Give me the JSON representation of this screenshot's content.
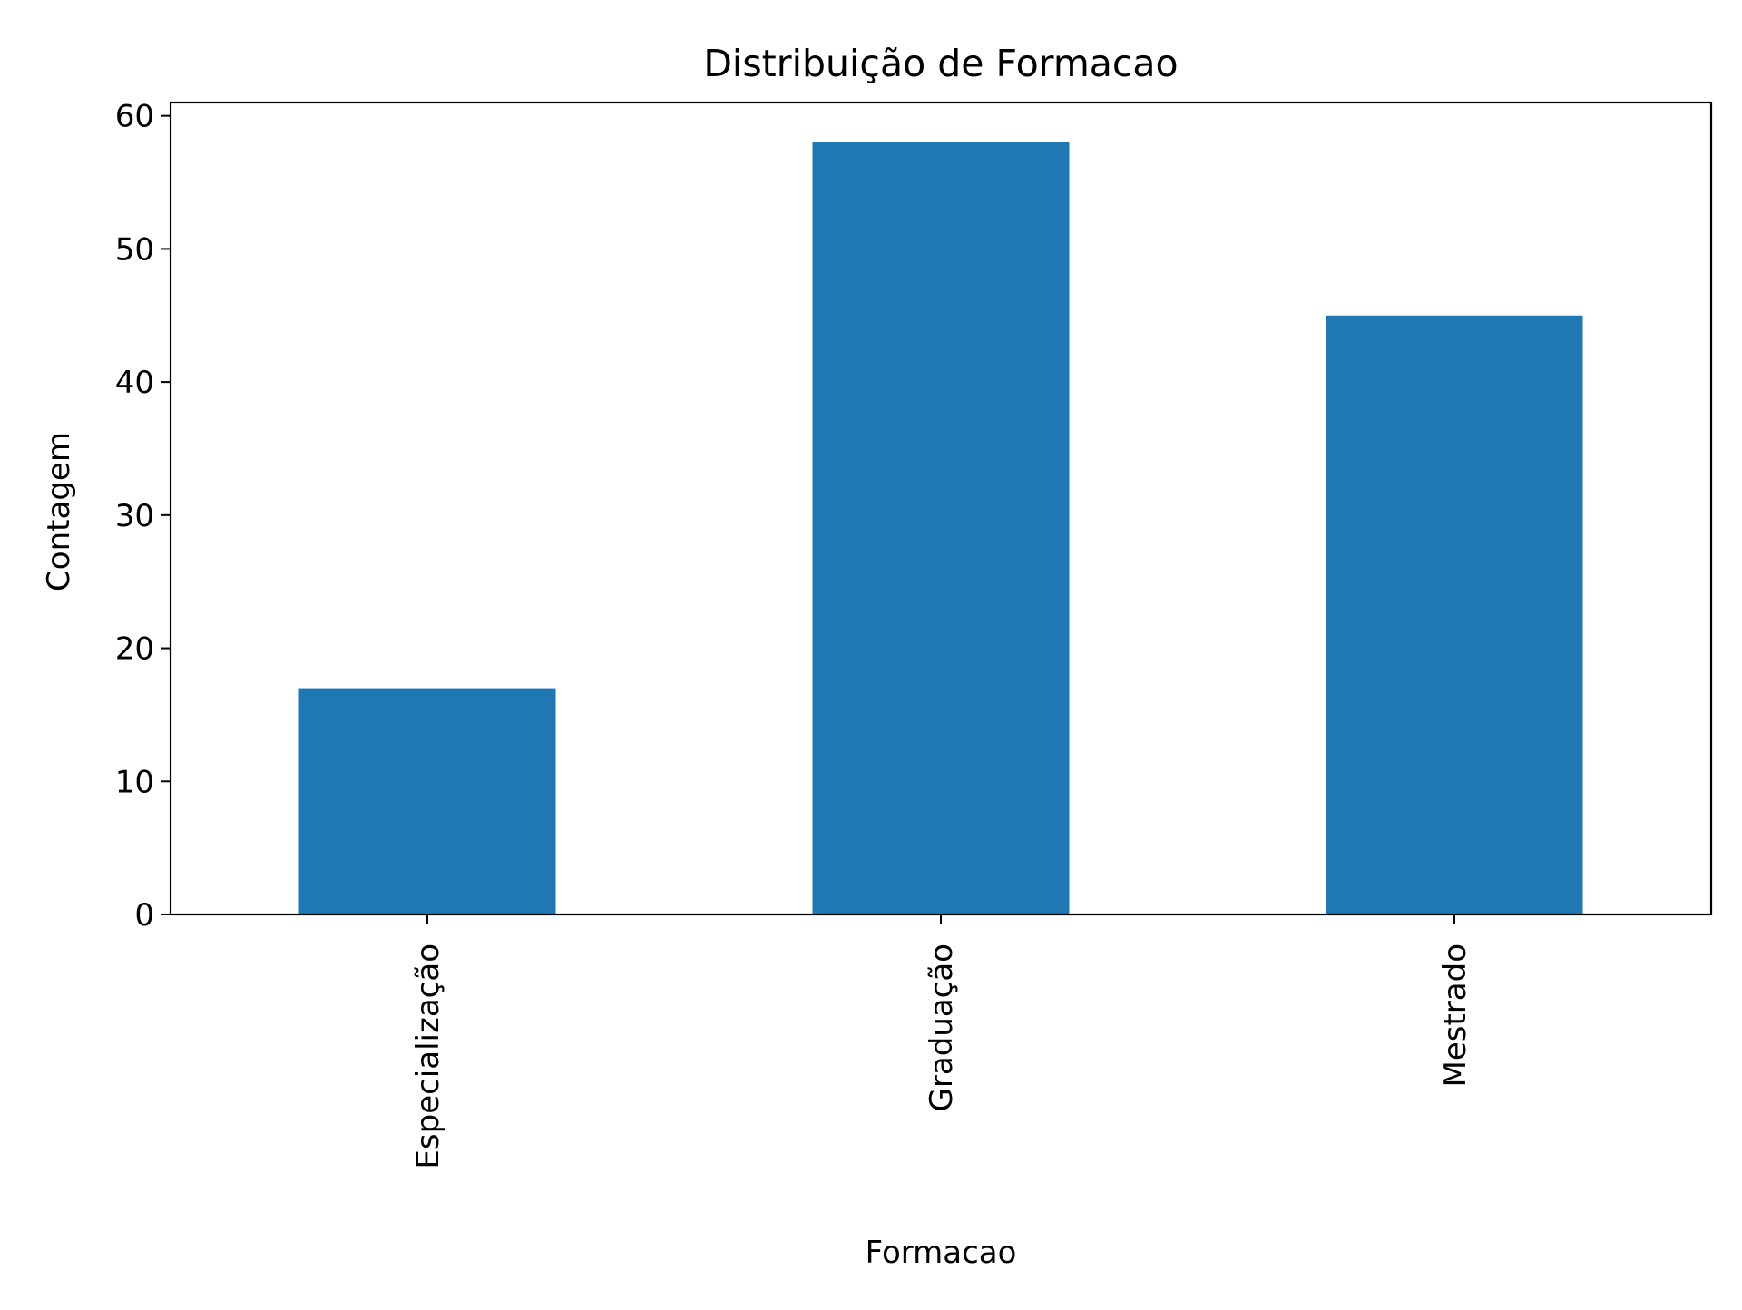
{
  "chart_data": {
    "type": "bar",
    "title": "Distribuição de Formacao",
    "xlabel": "Formacao",
    "ylabel": "Contagem",
    "categories": [
      "Especialização",
      "Graduação",
      "Mestrado"
    ],
    "values": [
      17,
      58,
      45
    ],
    "ylim": [
      0,
      61
    ],
    "yticks": [
      0,
      10,
      20,
      30,
      40,
      50,
      60
    ],
    "grid": false,
    "legend": "none",
    "bar_color": "#1f77b4"
  }
}
